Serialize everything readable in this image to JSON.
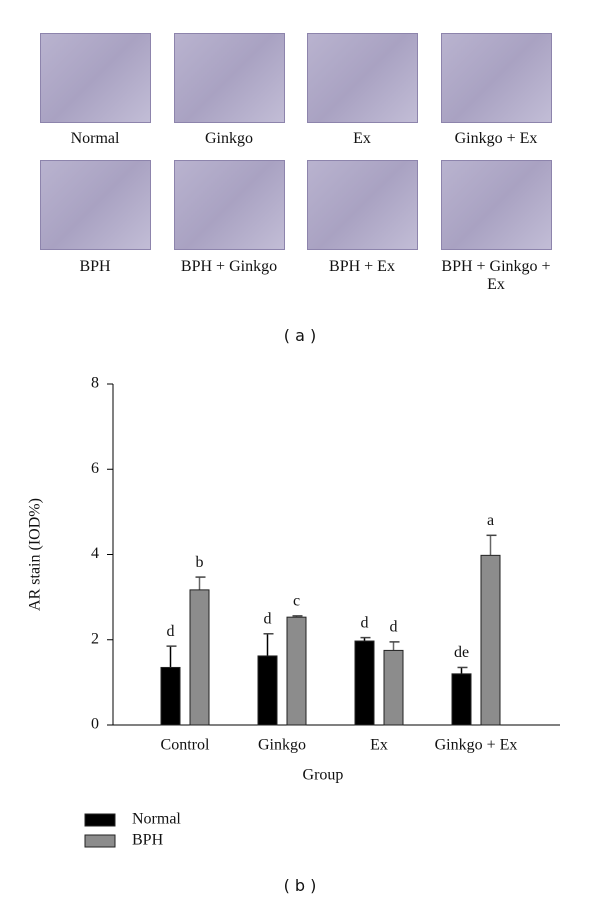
{
  "panel_a": {
    "labels": [
      "Normal",
      "Ginkgo",
      "Ex",
      "Ginkgo + Ex",
      "BPH",
      "BPH + Ginkgo",
      "BPH + Ex",
      "BPH + Ginkgo + Ex"
    ],
    "caption": "( a )"
  },
  "chart_data": {
    "type": "bar",
    "caption": "( b )",
    "y_label": "AR stain (IOD%)",
    "x_label": "Group",
    "categories": [
      "Control",
      "Ginkgo",
      "Ex",
      "Ginkgo + Ex"
    ],
    "series": [
      {
        "name": "Normal",
        "color": "#000000",
        "values": [
          1.35,
          1.62,
          1.97,
          1.2
        ],
        "errors": [
          0.5,
          0.52,
          0.08,
          0.15
        ],
        "letters": [
          "d",
          "d",
          "d",
          "de"
        ]
      },
      {
        "name": "BPH",
        "color": "#8c8c8c",
        "values": [
          3.17,
          2.53,
          1.75,
          3.98
        ],
        "errors": [
          0.3,
          0.03,
          0.2,
          0.47
        ],
        "letters": [
          "b",
          "c",
          "d",
          "a"
        ]
      }
    ],
    "ylim": [
      0,
      8
    ],
    "yticks": [
      0,
      2,
      4,
      6,
      8
    ]
  }
}
